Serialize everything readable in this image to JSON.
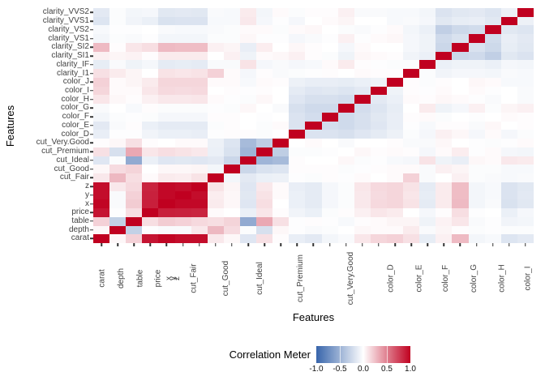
{
  "figure": {
    "x_axis_title": "Features",
    "y_axis_title": "Features",
    "legend": {
      "title": "Correlation Meter",
      "ticks": [
        "-1.0",
        "-0.5",
        "0.0",
        "0.5",
        "1.0"
      ],
      "min_color": "#3865AB",
      "mid_color": "#FFFFFF",
      "max_color": "#C00020"
    }
  },
  "chart_data": {
    "type": "heatmap",
    "title": "",
    "xlabel": "Features",
    "ylabel": "Features",
    "legend_title": "Correlation Meter",
    "legend_position": "bottom",
    "grid": false,
    "color_scale": {
      "min": -1.0,
      "mid": 0.0,
      "max": 1.0,
      "min_color": "#3865AB",
      "mid_color": "#FFFFFF",
      "max_color": "#C00020"
    },
    "x_order": "features left-to-right",
    "y_order": "features bottom-to-top",
    "features": [
      "carat",
      "depth",
      "table",
      "price",
      "x",
      "y",
      "z",
      "cut_Fair",
      "cut_Good",
      "cut_Ideal",
      "cut_Premium",
      "cut_Very.Good",
      "color_D",
      "color_E",
      "color_F",
      "color_G",
      "color_H",
      "color_I",
      "color_J",
      "clarity_I1",
      "clarity_IF",
      "clarity_SI1",
      "clarity_SI2",
      "clarity_VS1",
      "clarity_VS2",
      "clarity_VVS1",
      "clarity_VVS2"
    ],
    "matrix": [
      [
        1.0,
        0.03,
        0.18,
        0.92,
        0.98,
        0.95,
        0.95,
        0.09,
        0.03,
        -0.16,
        0.12,
        0.01,
        -0.11,
        -0.14,
        -0.06,
        -0.03,
        0.1,
        0.16,
        0.18,
        0.12,
        -0.12,
        0.06,
        0.27,
        -0.06,
        -0.04,
        -0.17,
        -0.14
      ],
      [
        0.03,
        1.0,
        -0.3,
        -0.01,
        -0.03,
        -0.03,
        0.09,
        0.28,
        0.14,
        -0.02,
        -0.2,
        0.03,
        -0.01,
        -0.03,
        -0.02,
        0.0,
        0.03,
        0.02,
        0.02,
        0.08,
        -0.03,
        0.04,
        0.01,
        -0.02,
        -0.01,
        -0.02,
        -0.02
      ],
      [
        0.18,
        -0.3,
        1.0,
        0.13,
        0.2,
        0.18,
        0.15,
        0.13,
        0.17,
        -0.55,
        0.34,
        0.12,
        -0.01,
        0.01,
        -0.01,
        -0.04,
        0.01,
        0.02,
        0.04,
        0.04,
        -0.08,
        0.05,
        0.1,
        -0.03,
        -0.01,
        -0.07,
        -0.06
      ],
      [
        0.92,
        -0.01,
        0.13,
        1.0,
        0.88,
        0.87,
        0.86,
        0.02,
        0.0,
        -0.1,
        0.1,
        0.01,
        -0.07,
        -0.1,
        -0.02,
        0.01,
        0.06,
        0.1,
        0.08,
        0.0,
        -0.05,
        0.01,
        0.13,
        -0.01,
        0.0,
        -0.1,
        -0.05
      ],
      [
        0.98,
        -0.03,
        0.2,
        0.88,
        1.0,
        0.97,
        0.97,
        0.08,
        0.03,
        -0.16,
        0.13,
        0.0,
        -0.1,
        -0.13,
        -0.05,
        -0.02,
        0.09,
        0.15,
        0.16,
        0.11,
        -0.13,
        0.08,
        0.27,
        -0.06,
        -0.03,
        -0.19,
        -0.15
      ],
      [
        0.95,
        -0.03,
        0.18,
        0.87,
        0.97,
        1.0,
        0.95,
        0.07,
        0.03,
        -0.15,
        0.11,
        0.02,
        -0.1,
        -0.13,
        -0.05,
        -0.02,
        0.09,
        0.14,
        0.16,
        0.1,
        -0.12,
        0.08,
        0.26,
        -0.06,
        -0.04,
        -0.18,
        -0.14
      ],
      [
        0.95,
        0.09,
        0.15,
        0.86,
        0.97,
        0.95,
        1.0,
        0.11,
        0.04,
        -0.16,
        0.09,
        0.02,
        -0.11,
        -0.13,
        -0.05,
        -0.02,
        0.1,
        0.15,
        0.16,
        0.11,
        -0.13,
        0.08,
        0.26,
        -0.06,
        -0.04,
        -0.18,
        -0.15
      ],
      [
        0.09,
        0.28,
        0.13,
        0.02,
        0.08,
        0.07,
        0.11,
        1.0,
        -0.06,
        -0.14,
        -0.1,
        -0.09,
        -0.01,
        -0.02,
        0.01,
        -0.01,
        0.02,
        0.0,
        0.02,
        0.18,
        -0.03,
        0.0,
        0.06,
        -0.02,
        -0.03,
        -0.04,
        -0.03
      ],
      [
        0.03,
        0.14,
        0.17,
        0.0,
        0.03,
        0.03,
        0.04,
        -0.06,
        1.0,
        -0.26,
        -0.19,
        -0.17,
        0.01,
        0.01,
        0.01,
        -0.02,
        -0.01,
        0.01,
        0.02,
        0.02,
        -0.03,
        0.06,
        0.04,
        -0.02,
        -0.02,
        -0.04,
        -0.04
      ],
      [
        -0.16,
        -0.02,
        -0.55,
        -0.1,
        -0.16,
        -0.15,
        -0.16,
        -0.14,
        -0.26,
        1.0,
        -0.48,
        -0.44,
        0.01,
        0.0,
        0.0,
        0.03,
        -0.02,
        -0.01,
        -0.04,
        -0.05,
        0.11,
        -0.08,
        -0.11,
        0.03,
        0.02,
        0.09,
        0.08
      ],
      [
        0.12,
        -0.2,
        0.34,
        0.1,
        0.13,
        0.11,
        0.09,
        -0.1,
        -0.19,
        -0.48,
        1.0,
        -0.32,
        -0.02,
        -0.02,
        -0.01,
        0.0,
        0.03,
        0.01,
        0.02,
        0.01,
        -0.05,
        0.02,
        0.07,
        -0.01,
        0.02,
        -0.05,
        -0.06
      ],
      [
        0.01,
        0.03,
        0.12,
        0.01,
        0.0,
        0.02,
        0.02,
        -0.09,
        -0.17,
        -0.44,
        -0.32,
        1.0,
        0.0,
        0.02,
        0.0,
        -0.03,
        0.0,
        0.0,
        0.01,
        -0.03,
        -0.03,
        0.03,
        0.0,
        -0.01,
        -0.02,
        -0.01,
        0.02
      ],
      [
        -0.11,
        -0.01,
        -0.01,
        -0.07,
        -0.1,
        -0.1,
        -0.11,
        -0.01,
        0.01,
        0.01,
        -0.02,
        0.0,
        1.0,
        -0.18,
        -0.18,
        -0.2,
        -0.16,
        -0.13,
        -0.09,
        -0.02,
        -0.05,
        0.06,
        0.03,
        -0.05,
        0.02,
        -0.05,
        -0.02
      ],
      [
        -0.14,
        -0.03,
        0.01,
        -0.1,
        -0.13,
        -0.13,
        -0.13,
        -0.02,
        0.01,
        0.0,
        -0.02,
        0.02,
        -0.18,
        1.0,
        -0.22,
        -0.24,
        -0.2,
        -0.16,
        -0.11,
        -0.01,
        -0.04,
        0.01,
        0.01,
        -0.03,
        0.03,
        0.0,
        0.01
      ],
      [
        -0.06,
        -0.02,
        -0.01,
        -0.02,
        -0.05,
        -0.05,
        -0.05,
        0.01,
        0.01,
        0.0,
        -0.01,
        0.0,
        -0.18,
        -0.22,
        1.0,
        -0.24,
        -0.2,
        -0.15,
        -0.11,
        0.01,
        0.02,
        -0.02,
        0.0,
        -0.01,
        0.0,
        0.02,
        0.01
      ],
      [
        -0.03,
        0.0,
        -0.04,
        0.01,
        -0.02,
        -0.02,
        -0.02,
        -0.01,
        -0.02,
        0.03,
        0.0,
        -0.03,
        -0.2,
        -0.24,
        -0.24,
        1.0,
        -0.22,
        -0.17,
        -0.12,
        0.0,
        0.08,
        -0.08,
        -0.05,
        0.06,
        -0.02,
        0.04,
        0.06
      ],
      [
        0.1,
        0.03,
        0.01,
        0.06,
        0.09,
        0.09,
        0.1,
        0.02,
        -0.01,
        -0.02,
        0.03,
        0.0,
        -0.16,
        -0.2,
        -0.2,
        -0.22,
        1.0,
        -0.14,
        -0.1,
        0.02,
        0.01,
        0.03,
        0.02,
        -0.01,
        -0.03,
        0.0,
        -0.03
      ],
      [
        0.16,
        0.02,
        0.02,
        0.1,
        0.15,
        0.14,
        0.15,
        0.0,
        0.01,
        -0.01,
        0.01,
        0.0,
        -0.13,
        -0.16,
        -0.15,
        -0.17,
        -0.14,
        1.0,
        -0.08,
        0.01,
        -0.01,
        0.02,
        0.0,
        0.02,
        -0.01,
        0.0,
        -0.03
      ],
      [
        0.18,
        0.02,
        0.04,
        0.08,
        0.16,
        0.16,
        0.16,
        0.02,
        0.02,
        -0.04,
        0.02,
        0.01,
        -0.09,
        -0.11,
        -0.11,
        -0.12,
        -0.1,
        -0.08,
        1.0,
        0.01,
        -0.02,
        0.01,
        0.0,
        0.03,
        0.02,
        -0.04,
        -0.04
      ],
      [
        0.12,
        0.08,
        0.04,
        0.0,
        0.11,
        0.1,
        0.11,
        0.18,
        0.02,
        -0.05,
        0.01,
        -0.03,
        -0.02,
        -0.01,
        0.01,
        0.0,
        0.02,
        0.01,
        0.01,
        1.0,
        -0.02,
        -0.07,
        -0.05,
        -0.05,
        -0.06,
        -0.03,
        -0.04
      ],
      [
        -0.12,
        -0.03,
        -0.08,
        -0.05,
        -0.13,
        -0.12,
        -0.13,
        -0.03,
        -0.03,
        0.11,
        -0.05,
        -0.03,
        -0.05,
        -0.04,
        0.02,
        0.08,
        0.01,
        -0.01,
        -0.02,
        -0.02,
        1.0,
        -0.1,
        -0.08,
        -0.08,
        -0.1,
        -0.05,
        -0.06
      ],
      [
        0.06,
        0.04,
        0.05,
        0.01,
        0.08,
        0.08,
        0.08,
        0.0,
        0.06,
        -0.08,
        0.02,
        0.03,
        0.06,
        0.01,
        -0.02,
        -0.08,
        0.03,
        0.02,
        0.01,
        -0.07,
        -0.1,
        1.0,
        -0.26,
        -0.24,
        -0.31,
        -0.15,
        -0.18
      ],
      [
        0.27,
        0.01,
        0.1,
        0.13,
        0.27,
        0.26,
        0.26,
        0.06,
        0.04,
        -0.11,
        0.07,
        0.0,
        0.03,
        0.01,
        0.0,
        -0.05,
        0.02,
        0.0,
        0.0,
        -0.05,
        -0.08,
        -0.26,
        1.0,
        -0.19,
        -0.25,
        -0.12,
        -0.15
      ],
      [
        -0.06,
        -0.02,
        -0.03,
        -0.01,
        -0.06,
        -0.06,
        -0.06,
        -0.02,
        -0.02,
        0.03,
        -0.01,
        -0.01,
        -0.05,
        -0.03,
        -0.01,
        0.06,
        -0.01,
        0.02,
        0.03,
        -0.05,
        -0.08,
        -0.24,
        -0.19,
        1.0,
        -0.23,
        -0.11,
        -0.14
      ],
      [
        -0.04,
        -0.01,
        -0.01,
        0.0,
        -0.03,
        -0.04,
        -0.04,
        -0.03,
        -0.02,
        0.02,
        0.02,
        -0.02,
        0.02,
        0.03,
        0.0,
        -0.02,
        -0.03,
        -0.01,
        0.02,
        -0.06,
        -0.1,
        -0.31,
        -0.25,
        -0.23,
        1.0,
        -0.15,
        -0.17
      ],
      [
        -0.17,
        -0.02,
        -0.07,
        -0.1,
        -0.19,
        -0.18,
        -0.18,
        -0.04,
        -0.04,
        0.09,
        -0.05,
        -0.01,
        -0.05,
        0.0,
        0.02,
        0.04,
        0.0,
        0.0,
        -0.04,
        -0.03,
        -0.05,
        -0.15,
        -0.12,
        -0.11,
        -0.15,
        1.0,
        -0.09
      ],
      [
        -0.14,
        -0.02,
        -0.06,
        -0.05,
        -0.15,
        -0.14,
        -0.15,
        -0.03,
        -0.04,
        0.08,
        -0.06,
        0.02,
        -0.02,
        0.01,
        0.01,
        0.06,
        -0.03,
        -0.03,
        -0.04,
        -0.04,
        -0.06,
        -0.18,
        -0.15,
        -0.14,
        -0.17,
        -0.09,
        1.0
      ]
    ]
  }
}
